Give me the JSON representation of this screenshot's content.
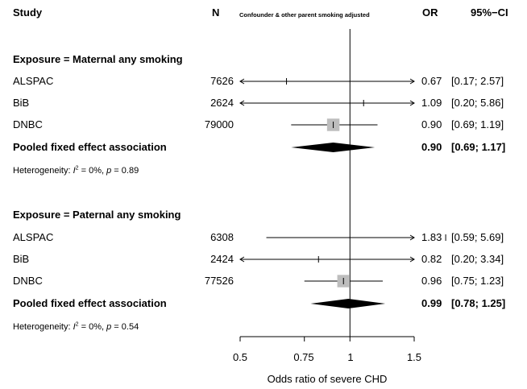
{
  "chart_data": {
    "type": "forest",
    "headers": {
      "study": "Study",
      "n": "N",
      "adjustment": "Confounder & other parent smoking adjusted",
      "or": "OR",
      "ci": "95%−CI"
    },
    "groups": [
      {
        "title": "Exposure = Maternal any smoking",
        "studies": [
          {
            "name": "ALSPAC",
            "n": "7626",
            "or": 0.67,
            "lo": 0.17,
            "hi": 2.57,
            "weight": 0.04,
            "or_text": "0.67",
            "ci_text": "[0.17; 2.57]"
          },
          {
            "name": "BiB",
            "n": "2624",
            "or": 1.09,
            "lo": 0.2,
            "hi": 5.86,
            "weight": 0.03,
            "or_text": "1.09",
            "ci_text": "[0.20; 5.86]"
          },
          {
            "name": "DNBC",
            "n": "79000",
            "or": 0.9,
            "lo": 0.69,
            "hi": 1.19,
            "weight": 0.93,
            "or_text": "0.90",
            "ci_text": "[0.69; 1.19]"
          }
        ],
        "pooled": {
          "label": "Pooled fixed effect association",
          "or": 0.9,
          "lo": 0.69,
          "hi": 1.17,
          "or_text": "0.90",
          "ci_text": "[0.69; 1.17]"
        },
        "heterogeneity": {
          "prefix": "Heterogeneity: ",
          "i2_text": " = 0%, ",
          "p_text": " = 0.89"
        }
      },
      {
        "title": "Exposure = Paternal any smoking",
        "studies": [
          {
            "name": "ALSPAC",
            "n": "6308",
            "or": 1.83,
            "lo": 0.59,
            "hi": 5.69,
            "weight": 0.05,
            "or_text": "1.83",
            "ci_text": "[0.59; 5.69]"
          },
          {
            "name": "BiB",
            "n": "2424",
            "or": 0.82,
            "lo": 0.2,
            "hi": 3.34,
            "weight": 0.03,
            "or_text": "0.82",
            "ci_text": "[0.20; 3.34]"
          },
          {
            "name": "DNBC",
            "n": "77526",
            "or": 0.96,
            "lo": 0.75,
            "hi": 1.23,
            "weight": 0.92,
            "or_text": "0.96",
            "ci_text": "[0.75; 1.23]"
          }
        ],
        "pooled": {
          "label": "Pooled fixed effect association",
          "or": 0.99,
          "lo": 0.78,
          "hi": 1.25,
          "or_text": "0.99",
          "ci_text": "[0.78; 1.25]"
        },
        "heterogeneity": {
          "prefix": "Heterogeneity: ",
          "i2_text": " = 0%, ",
          "p_text": " = 0.54"
        }
      }
    ],
    "x_axis": {
      "label": "Odds ratio of severe CHD",
      "scale": "log",
      "ticks": [
        0.5,
        0.75,
        1,
        1.5
      ],
      "tick_labels": [
        "0.5",
        "0.75",
        "1",
        "1.5"
      ],
      "range": [
        0.5,
        1.5
      ],
      "reference": 1
    },
    "colors": {
      "square": "#bdbdbd",
      "line": "#000000",
      "diamond": "#000000"
    }
  }
}
